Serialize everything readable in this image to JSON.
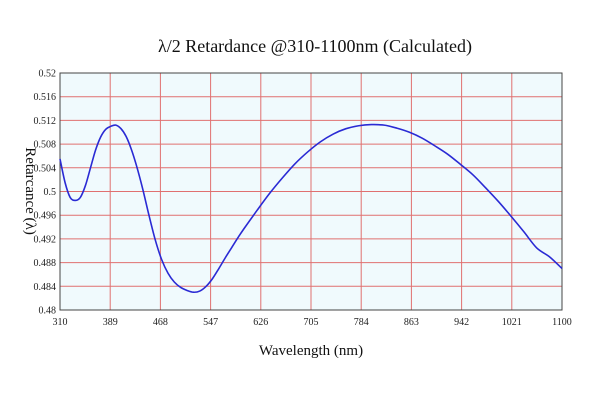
{
  "chart_data": {
    "type": "line",
    "title": "λ/2 Retardance @310-1100nm (Calculated)",
    "xlabel": "Wavelength (nm)",
    "ylabel": "Retarcance (λ)",
    "xlim": [
      310,
      1100
    ],
    "ylim": [
      0.48,
      0.52
    ],
    "xticks": [
      "310",
      "389",
      "468",
      "547",
      "626",
      "705",
      "784",
      "863",
      "942",
      "1021",
      "1100"
    ],
    "yticks": [
      "0.52",
      "0.516",
      "0.512",
      "0.508",
      "0.504",
      "0.5",
      "0.496",
      "0.492",
      "0.488",
      "0.484",
      "0.48"
    ],
    "grid": true,
    "colors": {
      "line": "#2a2ad4",
      "grid": "#e07070",
      "plot_bg": "#f0fafd",
      "axis": "#444444"
    },
    "series": [
      {
        "x": [
          310,
          318,
          326,
          334,
          342,
          350,
          358,
          366,
          374,
          382,
          390,
          398,
          406,
          414,
          422,
          430,
          440,
          450,
          460,
          470,
          480,
          490,
          500,
          510,
          520,
          530,
          540,
          550,
          560,
          570,
          580,
          590,
          600,
          620,
          640,
          660,
          680,
          700,
          720,
          740,
          760,
          780,
          800,
          820,
          840,
          860,
          880,
          900,
          920,
          940,
          960,
          980,
          1000,
          1020,
          1040,
          1060,
          1080,
          1100
        ],
        "y": [
          0.5055,
          0.5015,
          0.499,
          0.4985,
          0.499,
          0.501,
          0.504,
          0.507,
          0.5092,
          0.5105,
          0.511,
          0.5112,
          0.5106,
          0.5093,
          0.5072,
          0.5045,
          0.5005,
          0.496,
          0.4918,
          0.4885,
          0.4862,
          0.4847,
          0.4838,
          0.4833,
          0.483,
          0.4832,
          0.484,
          0.4853,
          0.487,
          0.4888,
          0.4905,
          0.4922,
          0.4938,
          0.4968,
          0.4997,
          0.5023,
          0.5047,
          0.5067,
          0.5084,
          0.5097,
          0.5106,
          0.5111,
          0.5113,
          0.5112,
          0.5107,
          0.51,
          0.509,
          0.5077,
          0.5063,
          0.5046,
          0.5028,
          0.5006,
          0.4983,
          0.4958,
          0.4932,
          0.4905,
          0.489,
          0.487
        ]
      }
    ]
  }
}
